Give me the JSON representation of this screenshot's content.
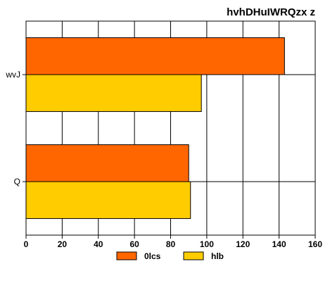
{
  "chart_data": {
    "type": "bar",
    "orientation": "horizontal",
    "title": "hvhDHuIWRQzx z",
    "xlabel": "",
    "ylabel": "",
    "categories": [
      "wvJ",
      "Q"
    ],
    "series": [
      {
        "name": "0lcs",
        "color": "#ff6600",
        "values": [
          143,
          90
        ]
      },
      {
        "name": "hlb",
        "color": "#ffcc00",
        "values": [
          97,
          91
        ]
      }
    ],
    "xlim": [
      0,
      160
    ],
    "xticks": [
      0,
      20,
      40,
      60,
      80,
      100,
      120,
      140,
      160
    ],
    "grid": true,
    "legend_position": "bottom"
  }
}
